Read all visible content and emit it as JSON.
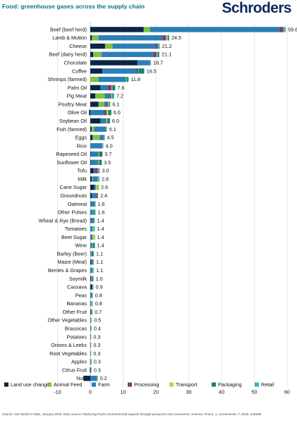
{
  "header": {
    "title": "Food: greenhouse gases across the supply chain",
    "logo_text": "Schroders"
  },
  "footer": {
    "source": "Source: Our World In Data, January 2020. Data source; Reducing food's environmental impacts through producers and consumers, Science, Poore, J., & Nemecek, T, 2018. 429298."
  },
  "chart_data": {
    "type": "bar",
    "orientation": "horizontal",
    "stacked": true,
    "title": "Food: greenhouse gases across the supply chain",
    "xlabel": "",
    "ylabel": "",
    "xlim": [
      -10,
      60
    ],
    "xticks": [
      -10,
      0,
      10,
      20,
      30,
      40,
      50,
      60
    ],
    "grid": true,
    "legend_position": "bottom",
    "categories": [
      "Beef (beef herd)",
      "Lamb & Mutton",
      "Cheese",
      "Beef (dairy herd)",
      "Chocolate",
      "Coffee",
      "Shrimps (farmed)",
      "Palm Oil",
      "Pig Meat",
      "Poultry Meat",
      "Olive Oil",
      "Soybean Oil",
      "Fish (farmed)",
      "Eggs",
      "Rice",
      "Rapeseed Oil",
      "Sunflower Oil",
      "Tofu",
      "Milk",
      "Cane Sugar",
      "Groundnuts",
      "Oatmeal",
      "Other Pulses",
      "Wheat & Rye (Bread)",
      "Tomatoes",
      "Beet Sugar",
      "Wine",
      "Barley (Beer)",
      "Maize (Meal)",
      "Berries & Grapes",
      "Soymilk",
      "Cassava",
      "Peas",
      "Bananas",
      "Other Fruit",
      "Other Vegetables",
      "Brassicas",
      "Potatoes",
      "Onions & Leeks",
      "Root Vegetables",
      "Apples",
      "Citrus Fruit",
      "Nuts"
    ],
    "totals": [
      59.6,
      24.5,
      21.2,
      21.1,
      18.7,
      16.5,
      11.8,
      7.6,
      7.2,
      6.1,
      6.0,
      6.0,
      5.1,
      4.5,
      4.0,
      3.7,
      3.5,
      3.0,
      2.8,
      2.6,
      2.4,
      1.6,
      1.6,
      1.4,
      1.4,
      1.4,
      1.4,
      1.1,
      1.1,
      1.1,
      1.0,
      0.9,
      0.8,
      0.8,
      0.7,
      0.5,
      0.4,
      0.3,
      0.3,
      0.3,
      0.3,
      0.3,
      0.2
    ],
    "series": [
      {
        "name": "Land use change",
        "color": "#0b2545",
        "values": [
          16.3,
          0.5,
          4.5,
          0.9,
          14.3,
          3.7,
          0,
          3.1,
          1.5,
          2.5,
          -0.4,
          3.1,
          0.4,
          0.7,
          0,
          0.2,
          0.2,
          1.0,
          0.5,
          1.2,
          0.5,
          0,
          0,
          0.1,
          0,
          0,
          0,
          0,
          0.3,
          0,
          0.2,
          0.6,
          0,
          -0.03,
          0.1,
          0,
          0,
          0,
          0,
          0,
          -0.03,
          -0.14,
          -2.1
        ]
      },
      {
        "name": "Animal Feed",
        "color": "#7dc242",
        "values": [
          1.9,
          2.0,
          2.3,
          2.5,
          0,
          0,
          2.5,
          0,
          2.9,
          1.8,
          0,
          0,
          0.8,
          2.2,
          0,
          0,
          0,
          0,
          0.2,
          0,
          0,
          0,
          0,
          0,
          0,
          0,
          0,
          0,
          0,
          0,
          0,
          0,
          0,
          0,
          0,
          0,
          0,
          0,
          0,
          0,
          0,
          0,
          0
        ]
      },
      {
        "name": "Farm",
        "color": "#2b7fb8",
        "values": [
          39.4,
          19.5,
          13.1,
          15.7,
          3.7,
          10.4,
          8.4,
          2.1,
          1.7,
          0.7,
          4.3,
          1.5,
          3.6,
          1.3,
          3.6,
          2.1,
          2.1,
          0.5,
          1.5,
          0.5,
          1.4,
          1.4,
          0.8,
          0.8,
          0.7,
          0.5,
          0.6,
          0.2,
          0.5,
          0.7,
          0.1,
          0.1,
          0.7,
          0.3,
          0.4,
          0.2,
          0.3,
          0.2,
          0.2,
          0.2,
          0.2,
          0.3,
          2.1
        ]
      },
      {
        "name": "Processing",
        "color": "#7b3f7a",
        "values": [
          1.3,
          1.1,
          0.7,
          1.1,
          0.2,
          0.6,
          0,
          1.3,
          0.3,
          0.4,
          0.7,
          0.3,
          0,
          0,
          0.1,
          0.2,
          0.2,
          0.8,
          0.1,
          0,
          0.4,
          0,
          0,
          0.2,
          0,
          0.2,
          0.1,
          0.1,
          0.1,
          0,
          0.2,
          0,
          0,
          0,
          0,
          0,
          0,
          0,
          0,
          0,
          0,
          0,
          0
        ]
      },
      {
        "name": "Transport",
        "color": "#b5d63d",
        "values": [
          0.3,
          0.5,
          0.1,
          0.3,
          0.1,
          0.1,
          0.2,
          0.2,
          0.3,
          0.3,
          0.5,
          0.3,
          0.1,
          0.1,
          0.1,
          0.2,
          0.2,
          0.2,
          0.1,
          0.8,
          0.1,
          0.1,
          0.1,
          0.1,
          0.2,
          0.6,
          0.1,
          0.1,
          0.1,
          0.2,
          0.1,
          0.1,
          0.1,
          0.3,
          0.1,
          0.2,
          0.1,
          0.1,
          0.1,
          0.1,
          0.1,
          0.1,
          0.1
        ]
      },
      {
        "name": "Packaging",
        "color": "#17806e",
        "values": [
          0.2,
          0.3,
          0.2,
          0.4,
          0.1,
          1.6,
          0.4,
          0.9,
          0.3,
          0.2,
          0.9,
          0.8,
          0.1,
          0.1,
          0.1,
          1.0,
          0.8,
          0.1,
          0.1,
          0.1,
          0,
          0.1,
          0.4,
          0.1,
          0.1,
          0.1,
          0.6,
          0.6,
          0.1,
          0.1,
          0.3,
          0,
          0,
          0.1,
          0.1,
          0,
          0,
          0,
          0,
          0,
          0.1,
          0,
          0.1
        ]
      },
      {
        "name": "Retail",
        "color": "#30b8d4",
        "values": [
          0.2,
          0.2,
          0.3,
          0.2,
          0.1,
          0.1,
          0.2,
          0,
          0.3,
          0.2,
          0,
          0,
          0.1,
          0,
          0.1,
          0,
          0,
          0.3,
          0.3,
          0,
          0,
          0,
          0.3,
          0.1,
          0.4,
          0,
          0,
          0.1,
          0,
          0.1,
          0.1,
          0.2,
          0,
          0.1,
          0,
          0.1,
          0,
          0,
          0,
          0,
          0,
          0,
          0
        ]
      }
    ]
  }
}
